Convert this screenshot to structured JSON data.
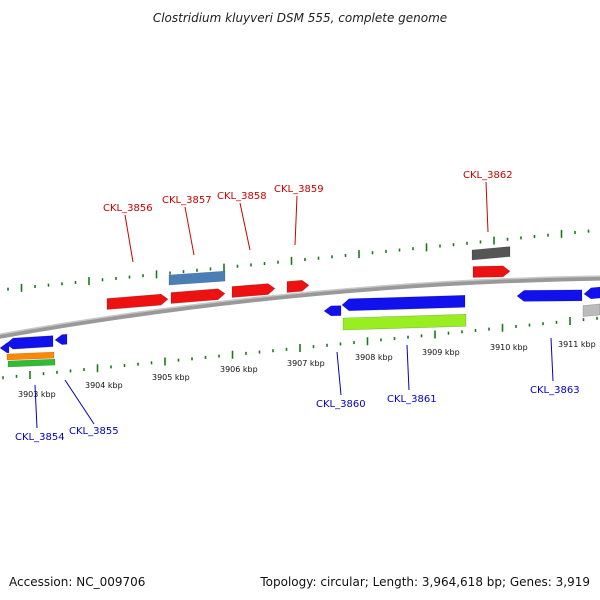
{
  "header": {
    "title": "Clostridium kluyveri DSM 555, complete genome"
  },
  "footer": {
    "accession": "Accession: NC_009706",
    "summary": "Topology: circular; Length: 3,964,618 bp; Genes: 3,919"
  },
  "colors": {
    "forward_label": "#cc0000",
    "reverse_label": "#0000cc",
    "tick": "#1a7a1a",
    "red": "#ee1111",
    "blue": "#1111ee",
    "steel": "#4a7fb5",
    "gray": "#555555",
    "lime": "#99ee22",
    "orange": "#ff8800",
    "green": "#33bb33",
    "silver": "#bbbbbb"
  },
  "scale_labels": [
    "3903 kbp",
    "3904 kbp",
    "3905 kbp",
    "3906 kbp",
    "3907 kbp",
    "3908 kbp",
    "3909 kbp",
    "3910 kbp",
    "3911 kbp"
  ],
  "gene_labels": [
    {
      "text": "CKL_3856",
      "strand": "forward"
    },
    {
      "text": "CKL_3857",
      "strand": "forward"
    },
    {
      "text": "CKL_3858",
      "strand": "forward"
    },
    {
      "text": "CKL_3859",
      "strand": "forward"
    },
    {
      "text": "CKL_3862",
      "strand": "forward"
    },
    {
      "text": "CKL_3854",
      "strand": "reverse"
    },
    {
      "text": "CKL_3855",
      "strand": "reverse"
    },
    {
      "text": "CKL_3860",
      "strand": "reverse"
    },
    {
      "text": "CKL_3861",
      "strand": "reverse"
    },
    {
      "text": "CKL_3863",
      "strand": "reverse"
    }
  ]
}
